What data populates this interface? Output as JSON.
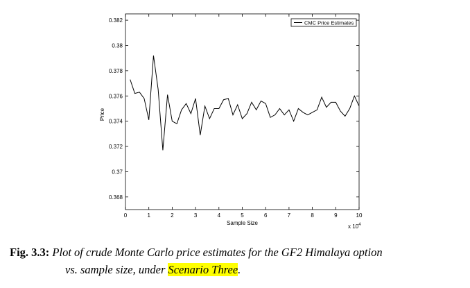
{
  "chart_data": {
    "type": "line",
    "xlabel": "Sample Size",
    "ylabel": "Price",
    "x_multiplier_label": "x 10",
    "x_multiplier_exp": "4",
    "xlim": [
      0,
      10
    ],
    "ylim": [
      0.367,
      0.3825
    ],
    "xticks": [
      "0",
      "1",
      "2",
      "3",
      "4",
      "5",
      "6",
      "7",
      "8",
      "9",
      "10"
    ],
    "yticks": [
      "0.368",
      "0.37",
      "0.372",
      "0.374",
      "0.376",
      "0.378",
      "0.38",
      "0.382"
    ],
    "legend": "top-right",
    "series": [
      {
        "name": "CMC Price Estimates",
        "x": [
          0.2,
          0.4,
          0.6,
          0.8,
          1.0,
          1.2,
          1.4,
          1.6,
          1.8,
          2.0,
          2.2,
          2.4,
          2.6,
          2.8,
          3.0,
          3.2,
          3.4,
          3.6,
          3.8,
          4.0,
          4.2,
          4.4,
          4.6,
          4.8,
          5.0,
          5.2,
          5.4,
          5.6,
          5.8,
          6.0,
          6.2,
          6.4,
          6.6,
          6.8,
          7.0,
          7.2,
          7.4,
          7.6,
          7.8,
          8.0,
          8.2,
          8.4,
          8.6,
          8.8,
          9.0,
          9.2,
          9.4,
          9.6,
          9.8,
          10.0
        ],
        "y": [
          0.3773,
          0.3762,
          0.3763,
          0.3758,
          0.3741,
          0.3792,
          0.3765,
          0.3717,
          0.3761,
          0.374,
          0.3738,
          0.3749,
          0.3754,
          0.3746,
          0.3758,
          0.3729,
          0.3752,
          0.3742,
          0.375,
          0.375,
          0.3757,
          0.3758,
          0.3745,
          0.3753,
          0.3742,
          0.3746,
          0.3755,
          0.3749,
          0.3756,
          0.3754,
          0.3743,
          0.3745,
          0.375,
          0.3745,
          0.3749,
          0.374,
          0.375,
          0.3747,
          0.3745,
          0.3747,
          0.3749,
          0.3759,
          0.3751,
          0.3755,
          0.3755,
          0.3748,
          0.3744,
          0.375,
          0.376,
          0.3752
        ]
      }
    ]
  },
  "caption": {
    "label": "Fig. 3.3:",
    "line1": "Plot of crude Monte Carlo price estimates for the GF2 Himalaya option",
    "line2_pre": "vs. sample size, under ",
    "highlight": "Scenario Three",
    "line2_post": "."
  }
}
